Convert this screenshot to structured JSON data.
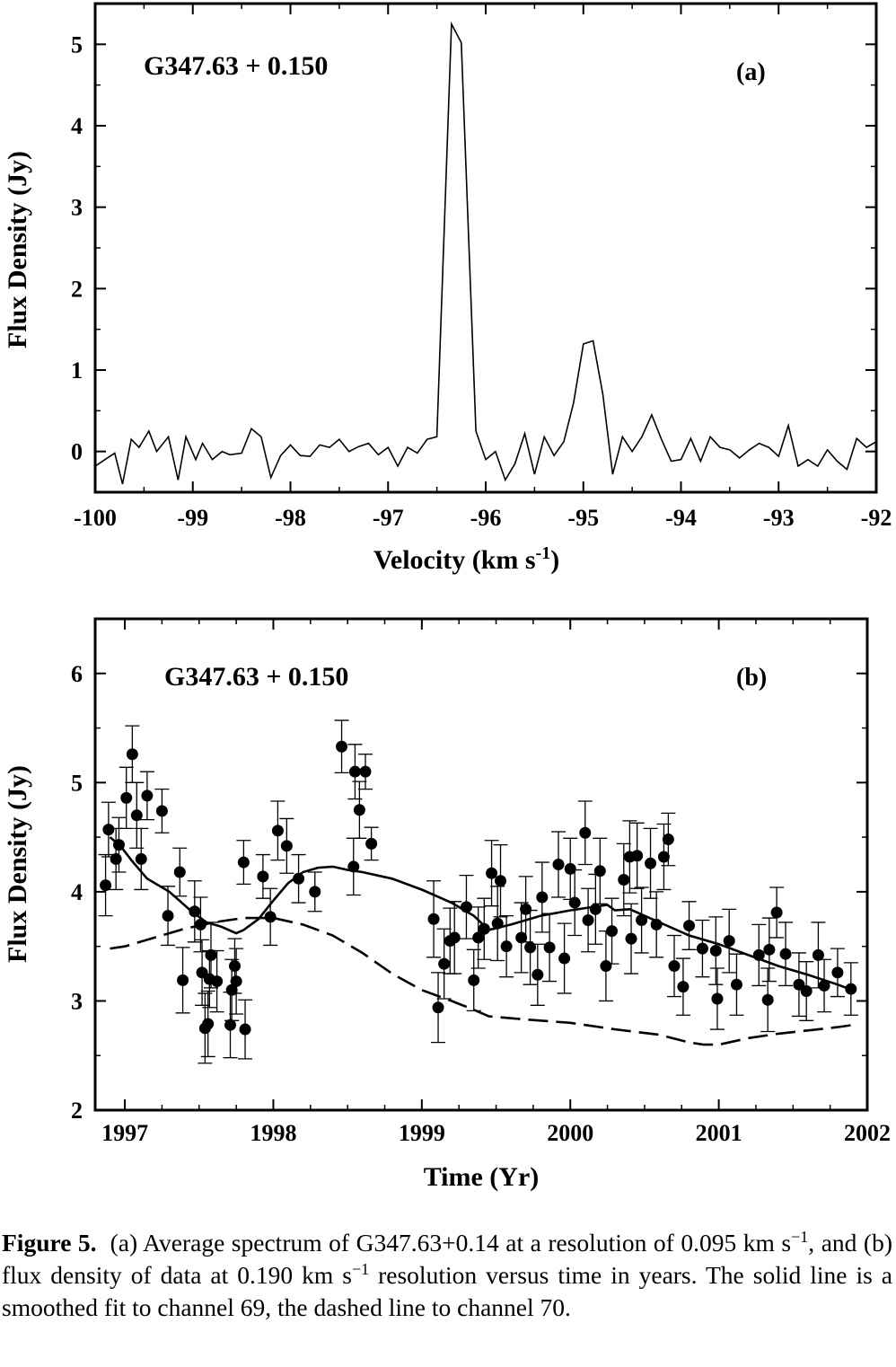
{
  "chart_data": [
    {
      "type": "line",
      "panel_label": "(a)",
      "source_label": "G347.63 + 0.150",
      "xlabel": "Velocity (km s",
      "xlabel_sup": "-1",
      "xlabel_end": ")",
      "ylabel": "Flux Density (Jy)",
      "xlim": [
        -100,
        -92
      ],
      "ylim": [
        -0.5,
        5.5
      ],
      "xticks": [
        "-100",
        "-99",
        "-98",
        "-97",
        "-96",
        "-95",
        "-94",
        "-93",
        "-92"
      ],
      "yticks": [
        "0",
        "1",
        "2",
        "3",
        "4",
        "5"
      ],
      "series": [
        {
          "x": [
            -100,
            -99.9,
            -99.8,
            -99.72,
            -99.63,
            -99.55,
            -99.45,
            -99.37,
            -99.25,
            -99.15,
            -99.07,
            -98.97,
            -98.9,
            -98.8,
            -98.7,
            -98.62,
            -98.5,
            -98.4,
            -98.3,
            -98.2,
            -98.1,
            -98.0,
            -97.9,
            -97.8,
            -97.7,
            -97.6,
            -97.5,
            -97.4,
            -97.3,
            -97.2,
            -97.1,
            -97.0,
            -96.9,
            -96.8,
            -96.7,
            -96.6,
            -96.5,
            -96.35,
            -96.25,
            -96.1,
            -96.0,
            -95.9,
            -95.8,
            -95.7,
            -95.6,
            -95.5,
            -95.4,
            -95.3,
            -95.2,
            -95.1,
            -95.0,
            -94.9,
            -94.8,
            -94.7,
            -94.6,
            -94.5,
            -94.4,
            -94.3,
            -94.2,
            -94.1,
            -94.0,
            -93.9,
            -93.8,
            -93.7,
            -93.6,
            -93.5,
            -93.4,
            -93.3,
            -93.2,
            -93.1,
            -93.0,
            -92.9,
            -92.8,
            -92.7,
            -92.6,
            -92.5,
            -92.4,
            -92.3,
            -92.2,
            -92.1,
            -92.0
          ],
          "y": [
            -0.18,
            -0.1,
            -0.02,
            -0.4,
            0.15,
            0.05,
            0.25,
            0.0,
            0.18,
            -0.35,
            0.18,
            -0.1,
            0.1,
            -0.1,
            0.0,
            -0.04,
            -0.02,
            0.28,
            0.18,
            -0.32,
            -0.05,
            0.08,
            -0.05,
            -0.06,
            0.08,
            0.05,
            0.15,
            0.0,
            0.06,
            0.1,
            -0.04,
            0.05,
            -0.18,
            0.05,
            -0.02,
            0.15,
            0.18,
            5.25,
            5.02,
            0.25,
            -0.1,
            0.0,
            -0.35,
            -0.15,
            0.22,
            -0.28,
            0.18,
            -0.05,
            0.12,
            0.6,
            1.32,
            1.36,
            0.7,
            -0.28,
            0.18,
            0.0,
            0.18,
            0.45,
            0.15,
            -0.12,
            -0.1,
            0.16,
            -0.12,
            0.18,
            0.05,
            0.02,
            -0.08,
            0.02,
            0.1,
            0.05,
            -0.06,
            0.32,
            -0.18,
            -0.1,
            -0.18,
            0.02,
            -0.12,
            -0.22,
            0.16,
            0.05,
            0.12
          ]
        }
      ]
    },
    {
      "type": "scatter",
      "panel_label": "(b)",
      "source_label": "G347.63 + 0.150",
      "xlabel": "Time (Yr)",
      "ylabel": "Flux Density (Jy)",
      "xlim": [
        1996.8,
        2002.0
      ],
      "ylim": [
        2,
        6.5
      ],
      "xticks": [
        "1997",
        "1998",
        "1999",
        "2000",
        "2001",
        "2002"
      ],
      "yticks": [
        "2",
        "3",
        "4",
        "5",
        "6"
      ],
      "points": [
        [
          1996.87,
          4.06
        ],
        [
          1996.89,
          4.57
        ],
        [
          1996.94,
          4.3
        ],
        [
          1996.96,
          4.43
        ],
        [
          1997.01,
          4.86
        ],
        [
          1997.05,
          5.26
        ],
        [
          1997.08,
          4.7
        ],
        [
          1997.11,
          4.3
        ],
        [
          1997.15,
          4.88
        ],
        [
          1997.25,
          4.74
        ],
        [
          1997.29,
          3.78
        ],
        [
          1997.37,
          4.18
        ],
        [
          1997.39,
          3.19
        ],
        [
          1997.47,
          3.82
        ],
        [
          1997.51,
          3.7
        ],
        [
          1997.52,
          3.26
        ],
        [
          1997.54,
          2.75
        ],
        [
          1997.56,
          2.79
        ],
        [
          1997.57,
          3.2
        ],
        [
          1997.58,
          3.42
        ],
        [
          1997.62,
          3.18
        ],
        [
          1997.71,
          2.78
        ],
        [
          1997.72,
          3.1
        ],
        [
          1997.74,
          3.32
        ],
        [
          1997.75,
          3.18
        ],
        [
          1997.8,
          4.27
        ],
        [
          1997.81,
          2.74
        ],
        [
          1997.93,
          4.14
        ],
        [
          1997.98,
          3.77
        ],
        [
          1998.03,
          4.56
        ],
        [
          1998.09,
          4.42
        ],
        [
          1998.17,
          4.12
        ],
        [
          1998.28,
          4.0
        ],
        [
          1998.46,
          5.33
        ],
        [
          1998.54,
          4.23
        ],
        [
          1998.55,
          5.1
        ],
        [
          1998.58,
          4.75
        ],
        [
          1998.62,
          5.1
        ],
        [
          1998.66,
          4.44
        ],
        [
          1999.08,
          3.75
        ],
        [
          1999.11,
          2.94
        ],
        [
          1999.15,
          3.34
        ],
        [
          1999.19,
          3.55
        ],
        [
          1999.22,
          3.58
        ],
        [
          1999.3,
          3.86
        ],
        [
          1999.35,
          3.19
        ],
        [
          1999.38,
          3.58
        ],
        [
          1999.42,
          3.66
        ],
        [
          1999.47,
          4.17
        ],
        [
          1999.51,
          3.71
        ],
        [
          1999.53,
          4.1
        ],
        [
          1999.57,
          3.5
        ],
        [
          1999.67,
          3.58
        ],
        [
          1999.7,
          3.84
        ],
        [
          1999.73,
          3.49
        ],
        [
          1999.78,
          3.24
        ],
        [
          1999.81,
          3.95
        ],
        [
          1999.86,
          3.49
        ],
        [
          1999.92,
          4.25
        ],
        [
          1999.96,
          3.39
        ],
        [
          2000.0,
          4.21
        ],
        [
          2000.03,
          3.9
        ],
        [
          2000.1,
          4.54
        ],
        [
          2000.12,
          3.74
        ],
        [
          2000.17,
          3.84
        ],
        [
          2000.2,
          4.19
        ],
        [
          2000.24,
          3.32
        ],
        [
          2000.28,
          3.64
        ],
        [
          2000.36,
          4.11
        ],
        [
          2000.4,
          4.32
        ],
        [
          2000.41,
          3.57
        ],
        [
          2000.45,
          4.33
        ],
        [
          2000.48,
          3.74
        ],
        [
          2000.54,
          4.26
        ],
        [
          2000.58,
          3.7
        ],
        [
          2000.63,
          4.32
        ],
        [
          2000.66,
          4.48
        ],
        [
          2000.7,
          3.32
        ],
        [
          2000.76,
          3.13
        ],
        [
          2000.8,
          3.69
        ],
        [
          2000.89,
          3.48
        ],
        [
          2000.98,
          3.46
        ],
        [
          2000.99,
          3.02
        ],
        [
          2001.07,
          3.55
        ],
        [
          2001.12,
          3.15
        ],
        [
          2001.27,
          3.42
        ],
        [
          2001.33,
          3.01
        ],
        [
          2001.34,
          3.47
        ],
        [
          2001.39,
          3.81
        ],
        [
          2001.45,
          3.43
        ],
        [
          2001.54,
          3.15
        ],
        [
          2001.59,
          3.09
        ],
        [
          2001.67,
          3.42
        ],
        [
          2001.71,
          3.14
        ],
        [
          2001.8,
          3.26
        ],
        [
          2001.89,
          3.11
        ]
      ],
      "errors": [
        0.28,
        0.25,
        0.28,
        0.25,
        0.28,
        0.26,
        0.3,
        0.28,
        0.22,
        0.2,
        0.27,
        0.22,
        0.3,
        0.28,
        0.25,
        0.3,
        0.32,
        0.3,
        0.26,
        0.3,
        0.28,
        0.3,
        0.28,
        0.25,
        0.3,
        0.2,
        0.27,
        0.2,
        0.26,
        0.27,
        0.25,
        0.22,
        0.18,
        0.24,
        0.26,
        0.25,
        0.26,
        0.16,
        0.15,
        0.35,
        0.32,
        0.32,
        0.3,
        0.33,
        0.29,
        0.28,
        0.28,
        0.28,
        0.3,
        0.34,
        0.33,
        0.28,
        0.32,
        0.3,
        0.34,
        0.28,
        0.32,
        0.31,
        0.3,
        0.32,
        0.28,
        0.3,
        0.29,
        0.29,
        0.32,
        0.3,
        0.32,
        0.3,
        0.33,
        0.33,
        0.32,
        0.3,
        0.3,
        0.32,
        0.3,
        0.3,
        0.24,
        0.28,
        0.26,
        0.22,
        0.26,
        0.31,
        0.28,
        0.29,
        0.28,
        0.28,
        0.29,
        0.29,
        0.23,
        0.29,
        0.29,
        0.27,
        0.3,
        0.24,
        0.22,
        0.24
      ],
      "smooth_fit_ch69": {
        "x": [
          1996.9,
          1996.97,
          1997.05,
          1997.15,
          1997.3,
          1997.45,
          1997.55,
          1997.65,
          1997.75,
          1997.8,
          1997.9,
          1998.0,
          1998.1,
          1998.2,
          1998.3,
          1998.4,
          1998.5,
          1998.6,
          1998.8,
          1999.0,
          1999.2,
          1999.35,
          1999.45,
          1999.6,
          1999.8,
          2000.0,
          2000.15,
          2000.25,
          2000.3,
          2000.4,
          2000.6,
          2000.8,
          2001.0,
          2001.2,
          2001.4,
          2001.6,
          2001.8,
          2001.9
        ],
        "y": [
          4.5,
          4.42,
          4.28,
          4.12,
          4.0,
          3.82,
          3.72,
          3.68,
          3.62,
          3.65,
          3.75,
          3.92,
          4.08,
          4.18,
          4.22,
          4.23,
          4.2,
          4.18,
          4.12,
          4.02,
          3.9,
          3.78,
          3.65,
          3.7,
          3.78,
          3.83,
          3.86,
          3.88,
          3.83,
          3.84,
          3.72,
          3.6,
          3.52,
          3.42,
          3.32,
          3.24,
          3.15,
          3.1
        ]
      },
      "smooth_fit_ch70": {
        "x": [
          1996.9,
          1997.0,
          1997.2,
          1997.4,
          1997.6,
          1997.8,
          1998.0,
          1998.2,
          1998.4,
          1998.6,
          1998.8,
          1999.0,
          1999.2,
          1999.35,
          1999.45,
          1999.7,
          2000.0,
          2000.3,
          2000.6,
          2000.8,
          2000.9,
          2001.0,
          2001.2,
          2001.4,
          2001.6,
          2001.8,
          2001.9
        ],
        "y": [
          3.48,
          3.5,
          3.58,
          3.66,
          3.72,
          3.76,
          3.76,
          3.7,
          3.6,
          3.44,
          3.25,
          3.1,
          3.0,
          2.92,
          2.86,
          2.83,
          2.8,
          2.74,
          2.69,
          2.62,
          2.6,
          2.6,
          2.66,
          2.7,
          2.73,
          2.76,
          2.78
        ]
      }
    }
  ],
  "caption": {
    "label": "Figure 5.",
    "line1": "(a) Average spectrum of G347.63+0.14 at a resolution of 0.095 km s",
    "sup1": "−1",
    "line2": ", and (b) flux density of data at 0.190 km s",
    "sup2": "−1",
    "line3": " resolution versus time in years. The solid line is a smoothed fit to channel 69, the dashed line to channel 70."
  }
}
